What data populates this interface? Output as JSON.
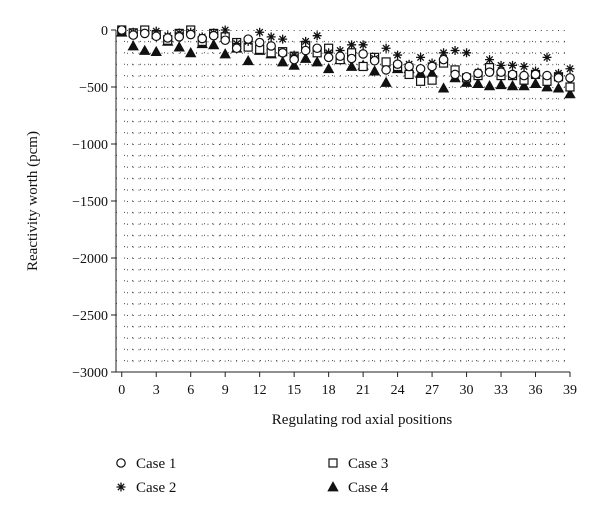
{
  "chart_data": {
    "type": "scatter",
    "title": "",
    "xlabel": "Regulating rod axial positions",
    "ylabel": "Reactivity worth (pcm)",
    "xlim": [
      -0.5,
      39
    ],
    "ylim": [
      -3000,
      0
    ],
    "x_ticks": [
      0,
      3,
      6,
      9,
      12,
      15,
      18,
      21,
      24,
      27,
      30,
      33,
      36,
      39
    ],
    "y_ticks": [
      0,
      -500,
      -1000,
      -1500,
      -2000,
      -2500,
      -3000
    ],
    "x_tick_labels": [
      "0",
      "3",
      "6",
      "9",
      "12",
      "15",
      "18",
      "21",
      "24",
      "27",
      "30",
      "33",
      "36",
      "39"
    ],
    "y_tick_labels": [
      "0",
      "−500",
      "−1000",
      "−1500",
      "−2000",
      "−2500",
      "−3000"
    ],
    "grid": "dotted",
    "legend_position": "bottom",
    "x": [
      0,
      1,
      2,
      3,
      4,
      5,
      6,
      7,
      8,
      9,
      10,
      11,
      12,
      13,
      14,
      15,
      16,
      17,
      18,
      19,
      20,
      21,
      22,
      23,
      24,
      25,
      26,
      27,
      28,
      29,
      30,
      31,
      32,
      33,
      34,
      35,
      36,
      37,
      38,
      39
    ],
    "series": [
      {
        "name": "Case 1",
        "marker": "circle",
        "values": [
          0,
          -45,
          -30,
          -55,
          -70,
          -60,
          -40,
          -75,
          -50,
          -90,
          -160,
          -80,
          -110,
          -140,
          -200,
          -260,
          -180,
          -160,
          -240,
          -230,
          -250,
          -210,
          -270,
          -350,
          -300,
          -320,
          -340,
          -320,
          -260,
          -390,
          -410,
          -380,
          -370,
          -370,
          -390,
          -400,
          -390,
          -400,
          -420,
          -420
        ]
      },
      {
        "name": "Case 2",
        "marker": "asterisk",
        "values": [
          0,
          -20,
          -30,
          -10,
          -50,
          -25,
          -20,
          -60,
          -25,
          0,
          -120,
          -100,
          -20,
          -60,
          -80,
          -220,
          -100,
          -50,
          -200,
          -180,
          -130,
          -130,
          -250,
          -160,
          -220,
          -300,
          -240,
          -290,
          -200,
          -180,
          -200,
          -370,
          -260,
          -310,
          -310,
          -320,
          -360,
          -240,
          -380,
          -340
        ]
      },
      {
        "name": "Case 3",
        "marker": "square",
        "values": [
          0,
          -25,
          0,
          -40,
          -90,
          -30,
          0,
          -100,
          -30,
          -60,
          -110,
          -150,
          -170,
          -200,
          -190,
          -230,
          -140,
          -200,
          -160,
          -260,
          -200,
          -320,
          -240,
          -280,
          -320,
          -390,
          -450,
          -440,
          -290,
          -350,
          -420,
          -400,
          -330,
          -400,
          -400,
          -440,
          -390,
          -450,
          -410,
          -500
        ]
      },
      {
        "name": "Case 4",
        "marker": "triangle",
        "values": [
          -20,
          -140,
          -180,
          -190,
          -100,
          -150,
          -200,
          -120,
          -130,
          -210,
          -160,
          -270,
          -180,
          -210,
          -280,
          -310,
          -250,
          -280,
          -340,
          -260,
          -320,
          -310,
          -360,
          -460,
          -340,
          -340,
          -380,
          -380,
          -510,
          -420,
          -460,
          -470,
          -490,
          -480,
          -490,
          -490,
          -470,
          -500,
          -510,
          -560
        ]
      }
    ]
  }
}
